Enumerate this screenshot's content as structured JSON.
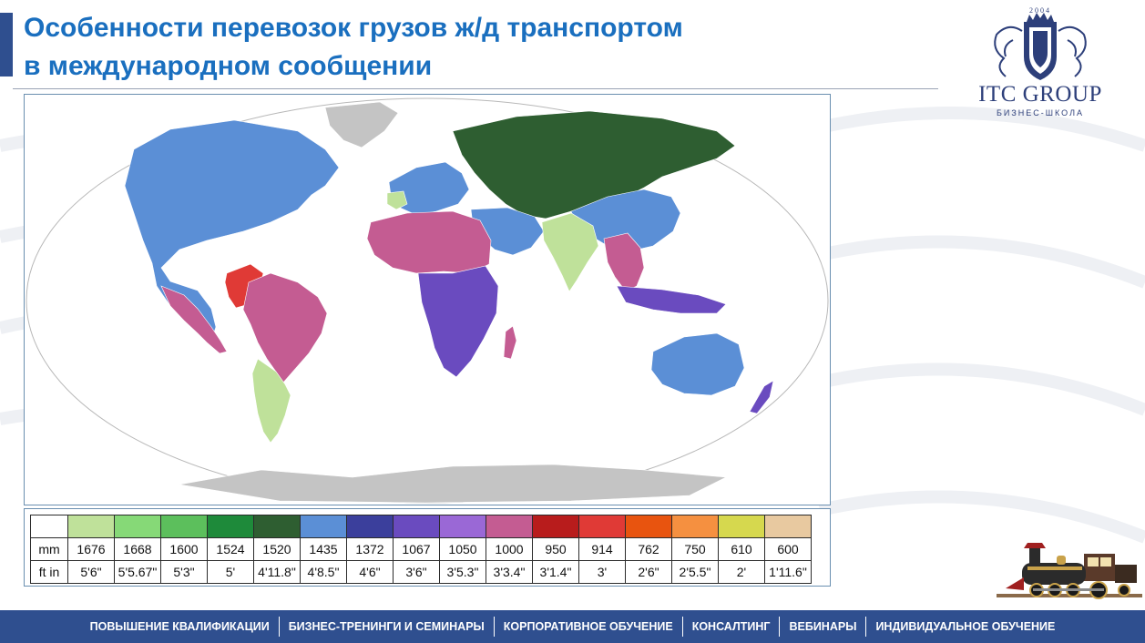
{
  "header": {
    "title_line1": "Особенности перевозок грузов ж/д транспортом",
    "title_line2": "в международном сообщении"
  },
  "logo": {
    "brand": "ITC GROUP",
    "subtitle": "БИЗНЕС-ШКОЛА",
    "year": "2004"
  },
  "legend": {
    "row_mm_label": "mm",
    "row_ft_label": "ft in",
    "gauges": [
      {
        "mm": "1676",
        "ft": "5'6\"",
        "color": "#bfe19a"
      },
      {
        "mm": "1668",
        "ft": "5'5.67\"",
        "color": "#86d977"
      },
      {
        "mm": "1600",
        "ft": "5'3\"",
        "color": "#5cbf5c"
      },
      {
        "mm": "1524",
        "ft": "5'",
        "color": "#1e8a3a"
      },
      {
        "mm": "1520",
        "ft": "4'11.8\"",
        "color": "#2e5e31"
      },
      {
        "mm": "1435",
        "ft": "4'8.5\"",
        "color": "#5b8fd6"
      },
      {
        "mm": "1372",
        "ft": "4'6\"",
        "color": "#3b3f9c"
      },
      {
        "mm": "1067",
        "ft": "3'6\"",
        "color": "#6a4bbf"
      },
      {
        "mm": "1050",
        "ft": "3'5.3\"",
        "color": "#9a68d6"
      },
      {
        "mm": "1000",
        "ft": "3'3.4\"",
        "color": "#c45c92"
      },
      {
        "mm": "950",
        "ft": "3'1.4\"",
        "color": "#b81c1c"
      },
      {
        "mm": "914",
        "ft": "3'",
        "color": "#e03a36"
      },
      {
        "mm": "762",
        "ft": "2'6\"",
        "color": "#e8540f"
      },
      {
        "mm": "750",
        "ft": "2'5.5\"",
        "color": "#f59040"
      },
      {
        "mm": "610",
        "ft": "2'",
        "color": "#d6d84e"
      },
      {
        "mm": "600",
        "ft": "1'11.6\"",
        "color": "#e8c9a0"
      }
    ]
  },
  "map": {
    "colors": {
      "ocean": "#ffffff",
      "no_rail": "#c4c4c4",
      "standard": "#5b8fd6",
      "russian": "#2e5e31",
      "indian": "#bfe19a",
      "metre": "#c45c92",
      "cape": "#6a4bbf",
      "colombia": "#e03a36"
    }
  },
  "footer": {
    "items": [
      "ПОВЫШЕНИЕ КВАЛИФИКАЦИИ",
      "БИЗНЕС-ТРЕНИНГИ И СЕМИНАРЫ",
      "КОРПОРАТИВНОЕ ОБУЧЕНИЕ",
      "КОНСАЛТИНГ",
      "ВЕБИНАРЫ",
      "ИНДИВИДУАЛЬНОЕ ОБУЧЕНИЕ"
    ]
  }
}
